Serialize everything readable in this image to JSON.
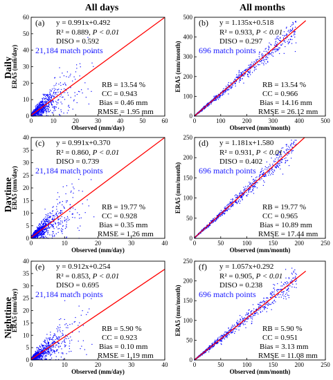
{
  "column_titles": [
    "All days",
    "All months"
  ],
  "row_titles": [
    "Daily",
    "Daytime",
    "Nighttime"
  ],
  "colors": {
    "points": "#0000ff",
    "fit_line": "#ff0000",
    "match_text": "#1a1aff"
  },
  "chart_data": [
    {
      "type": "scatter",
      "letter": "(a)",
      "row_title": "Daily",
      "column_title": "All days",
      "xlabel": "Observed (mm/day)",
      "ylabel": "ERA5 (mm/day)",
      "xlim": [
        0,
        60
      ],
      "ylim": [
        0,
        60
      ],
      "xticks": [
        0,
        10,
        20,
        30,
        40,
        50,
        60
      ],
      "yticks": [
        0,
        10,
        20,
        30,
        40,
        50,
        60
      ],
      "fit": {
        "slope": 0.991,
        "intercept": 0.492
      },
      "points_count": 21184,
      "equation": "y = 0.991x+0.492",
      "r2_text": "R² = 0.889, ",
      "p_text": "P < 0.01",
      "diso_text": "DISO = 0.592",
      "match_text": "21,184 match points",
      "rb_text": "RB = 13.54 %",
      "cc_text": "CC = 0.943",
      "bias_text": "Bias = 0.46 mm",
      "rmse_text": "RMSE = 1.95 mm"
    },
    {
      "type": "scatter",
      "letter": "(b)",
      "row_title": "Daily",
      "column_title": "All months",
      "xlabel": "Observed (mm/month)",
      "ylabel": "ERA5 (mm/month)",
      "xlim": [
        0,
        500
      ],
      "ylim": [
        0,
        500
      ],
      "xticks": [
        0,
        100,
        200,
        300,
        400,
        500
      ],
      "yticks": [
        0,
        100,
        200,
        300,
        400,
        500
      ],
      "fit": {
        "slope": 1.135,
        "intercept": 0.518
      },
      "points_count": 696,
      "equation": "y = 1.135x+0.518",
      "r2_text": "R² = 0.933, ",
      "p_text": "P < 0.01",
      "diso_text": "DISO = 0.297",
      "match_text": "696 match points",
      "rb_text": "RB = 13.54 %",
      "cc_text": "CC = 0.966",
      "bias_text": "Bias = 14.16 mm",
      "rmse_text": "RMSE = 26.12 mm"
    },
    {
      "type": "scatter",
      "letter": "(c)",
      "row_title": "Daytime",
      "column_title": "All days",
      "xlabel": "Observed (mm/day)",
      "ylabel": "ERA5 (mm/day)",
      "xlim": [
        0,
        40
      ],
      "ylim": [
        0,
        40
      ],
      "xticks": [
        0,
        10,
        20,
        30,
        40
      ],
      "yticks": [
        0,
        5,
        10,
        15,
        20,
        25,
        30,
        35,
        40
      ],
      "fit": {
        "slope": 0.991,
        "intercept": 0.37
      },
      "points_count": 21184,
      "equation": "y = 0.991x+0.370",
      "r2_text": "R² = 0.860, ",
      "p_text": "P < 0.01",
      "diso_text": "DISO = 0.739",
      "match_text": "21,184 match points",
      "rb_text": "RB = 19.77 %",
      "cc_text": "CC = 0.928",
      "bias_text": "Bias = 0.35 mm",
      "rmse_text": "RMSE = 1.26 mm"
    },
    {
      "type": "scatter",
      "letter": "(d)",
      "row_title": "Daytime",
      "column_title": "All months",
      "xlabel": "Observed (mm/month)",
      "ylabel": "ERA5 (mm/month)",
      "xlim": [
        0,
        250
      ],
      "ylim": [
        0,
        250
      ],
      "xticks": [
        0,
        50,
        100,
        150,
        200,
        250
      ],
      "yticks": [
        0,
        50,
        100,
        150,
        200,
        250
      ],
      "fit": {
        "slope": 1.181,
        "intercept": 1.58
      },
      "points_count": 696,
      "equation": "y = 1.181x+1.580",
      "r2_text": "R² = 0.931, ",
      "p_text": "P < 0.01",
      "diso_text": "DISO = 0.402",
      "match_text": "696 match points",
      "rb_text": "RB = 19.77 %",
      "cc_text": "CC = 0.965",
      "bias_text": "Bias = 10.89 mm",
      "rmse_text": "RMSE = 17.44 mm"
    },
    {
      "type": "scatter",
      "letter": "(e)",
      "row_title": "Nighttime",
      "column_title": "All days",
      "xlabel": "Observed (mm/day)",
      "ylabel": "ERA5 (mm/day)",
      "xlim": [
        0,
        40
      ],
      "ylim": [
        0,
        40
      ],
      "xticks": [
        0,
        10,
        20,
        30,
        40
      ],
      "yticks": [
        0,
        5,
        10,
        15,
        20,
        25,
        30,
        35,
        40
      ],
      "fit": {
        "slope": 0.912,
        "intercept": 0.254
      },
      "points_count": 21184,
      "equation": "y = 0.912x+0.254",
      "r2_text": "R² = 0.853, ",
      "p_text": "P < 0.01",
      "diso_text": "DISO = 0.695",
      "match_text": "21,184 match points",
      "rb_text": "RB = 5.90 %",
      "cc_text": "CC = 0.923",
      "bias_text": "Bias = 0.10 mm",
      "rmse_text": "RMSE = 1.19 mm"
    },
    {
      "type": "scatter",
      "letter": "(f)",
      "row_title": "Nighttime",
      "column_title": "All months",
      "xlabel": "Observed (mm/month)",
      "ylabel": "ERA5 (mm/month)",
      "xlim": [
        0,
        250
      ],
      "ylim": [
        0,
        250
      ],
      "xticks": [
        0,
        50,
        100,
        150,
        200,
        250
      ],
      "yticks": [
        0,
        50,
        100,
        150,
        200,
        250
      ],
      "fit": {
        "slope": 1.057,
        "intercept": 0.292
      },
      "points_count": 696,
      "equation": "y = 1.057x+0.292",
      "r2_text": "R² = 0.905, ",
      "p_text": "P < 0.01",
      "diso_text": "DISO = 0.238",
      "match_text": "696 match points",
      "rb_text": "RB = 5.90 %",
      "cc_text": "CC = 0.951",
      "bias_text": "Bias = 3.13 mm",
      "rmse_text": "RMSE = 11.08 mm"
    }
  ]
}
